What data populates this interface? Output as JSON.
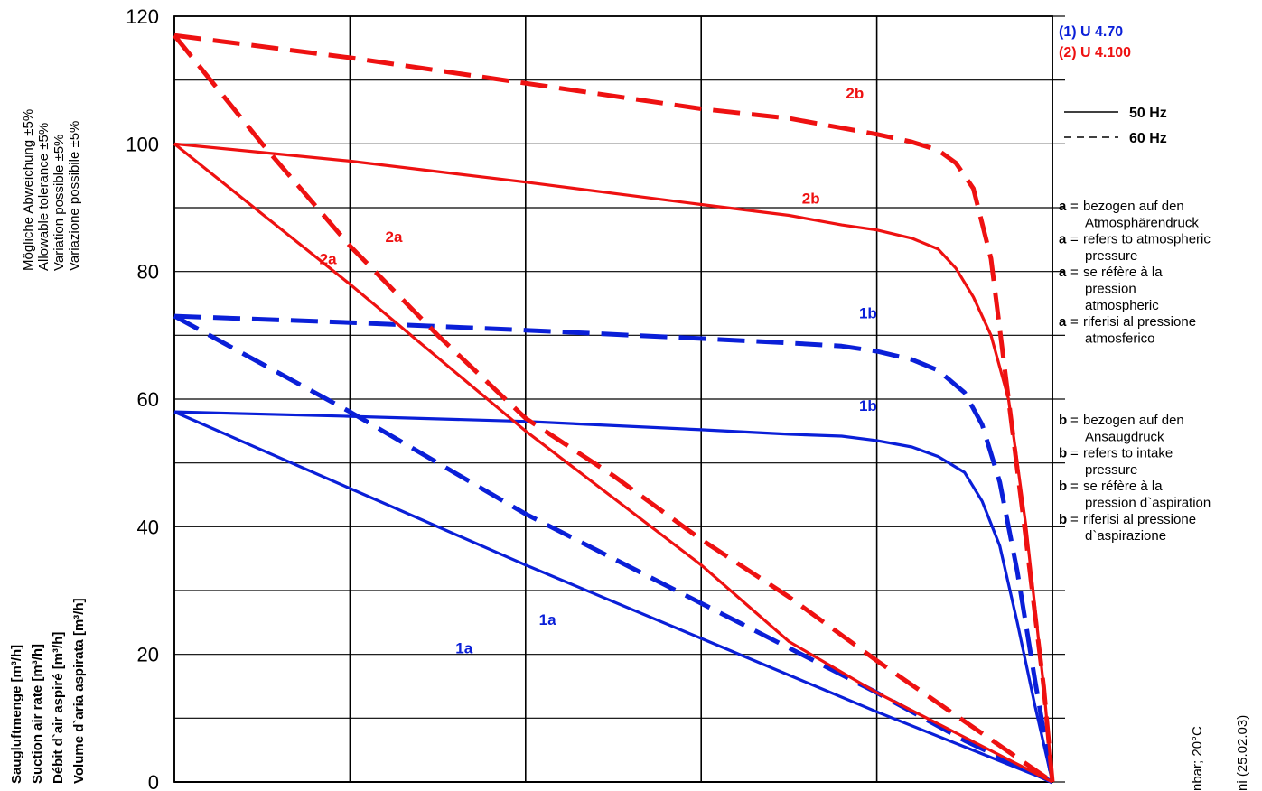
{
  "chart_data": {
    "type": "line",
    "ylim": [
      0,
      120
    ],
    "yticks": [
      "0",
      "20",
      "40",
      "60",
      "80",
      "100",
      "120"
    ],
    "grid": true,
    "tolerance_labels": [
      "Mögliche Abweichung ±5%",
      "Allowable tolerance ±5%",
      "Variation possible ±5%",
      "Variazione possibile ±5%"
    ],
    "ylabel_lines": [
      "Saugluftmenge [m³/h]",
      "Suction air rate [m³/h]",
      "Débit d`air aspiré [m³/h]",
      "Volume d`aria aspirata [m³/h]"
    ],
    "series": [
      {
        "name": "(1) U 4.70",
        "curve": "1a",
        "freq": "50 Hz",
        "color": "#0a1fd8",
        "x": [
          0,
          0.2,
          0.4,
          0.6,
          0.8,
          0.9,
          1.0
        ],
        "y": [
          58,
          46,
          34,
          22.5,
          11,
          5.5,
          0
        ]
      },
      {
        "name": "(1) U 4.70",
        "curve": "1a",
        "freq": "60 Hz",
        "color": "#0a1fd8",
        "x": [
          0,
          0.2,
          0.4,
          0.6,
          0.8,
          0.9,
          1.0
        ],
        "y": [
          73,
          58,
          42,
          28,
          14,
          6.5,
          0
        ]
      },
      {
        "name": "(1) U 4.70",
        "curve": "1b",
        "freq": "50 Hz",
        "color": "#0a1fd8",
        "x": [
          0,
          0.2,
          0.4,
          0.6,
          0.7,
          0.76,
          0.8,
          0.84,
          0.87,
          0.9,
          0.92,
          0.94,
          0.96,
          0.98,
          1.0
        ],
        "y": [
          58,
          57.3,
          56.5,
          55.2,
          54.5,
          54.2,
          53.5,
          52.5,
          51,
          48.5,
          44,
          37,
          25,
          12,
          0
        ]
      },
      {
        "name": "(1) U 4.70",
        "curve": "1b",
        "freq": "60 Hz",
        "color": "#0a1fd8",
        "x": [
          0,
          0.2,
          0.4,
          0.6,
          0.7,
          0.76,
          0.8,
          0.84,
          0.87,
          0.9,
          0.92,
          0.94,
          0.96,
          0.98,
          1.0
        ],
        "y": [
          73,
          72,
          70.8,
          69.5,
          68.8,
          68.3,
          67.5,
          66.2,
          64.5,
          61,
          56,
          47,
          33,
          16,
          0
        ]
      },
      {
        "name": "(2) U 4.100",
        "curve": "2a",
        "freq": "50 Hz",
        "color": "#ee1111",
        "x": [
          0,
          0.2,
          0.4,
          0.6,
          0.7,
          0.8,
          0.9,
          1.0
        ],
        "y": [
          100,
          78,
          55,
          34,
          22,
          14,
          7,
          0
        ]
      },
      {
        "name": "(2) U 4.100",
        "curve": "2a",
        "freq": "60 Hz",
        "color": "#ee1111",
        "x": [
          0,
          0.1,
          0.2,
          0.3,
          0.4,
          0.5,
          0.6,
          0.7,
          0.8,
          0.9,
          1.0
        ],
        "y": [
          117,
          100,
          84,
          70,
          57,
          48,
          38,
          29,
          19,
          9.5,
          0
        ]
      },
      {
        "name": "(2) U 4.100",
        "curve": "2b",
        "freq": "50 Hz",
        "color": "#ee1111",
        "x": [
          0,
          0.2,
          0.4,
          0.6,
          0.7,
          0.76,
          0.8,
          0.84,
          0.87,
          0.89,
          0.91,
          0.93,
          0.95,
          0.97,
          0.99,
          1.0
        ],
        "y": [
          100,
          97.3,
          94,
          90.5,
          88.8,
          87.3,
          86.5,
          85.2,
          83.5,
          80.5,
          76,
          70,
          60,
          40,
          15,
          0
        ]
      },
      {
        "name": "(2) U 4.100",
        "curve": "2b",
        "freq": "60 Hz",
        "color": "#ee1111",
        "x": [
          0,
          0.2,
          0.4,
          0.6,
          0.7,
          0.76,
          0.8,
          0.84,
          0.87,
          0.89,
          0.91,
          0.93,
          0.95,
          0.97,
          0.99,
          1.0
        ],
        "y": [
          117,
          113.5,
          109.5,
          105.5,
          104,
          102.5,
          101.5,
          100.3,
          99,
          97,
          93,
          82,
          60,
          38,
          15,
          0
        ]
      }
    ],
    "curve_labels": [
      {
        "text": "1a",
        "color": "#0a1fd8",
        "x": 0.33,
        "y": 21
      },
      {
        "text": "1a",
        "color": "#0a1fd8",
        "x": 0.425,
        "y": 25.5
      },
      {
        "text": "1b",
        "color": "#0a1fd8",
        "x": 0.79,
        "y": 59
      },
      {
        "text": "1b",
        "color": "#0a1fd8",
        "x": 0.79,
        "y": 73.5
      },
      {
        "text": "2a",
        "color": "#ee1111",
        "x": 0.175,
        "y": 82
      },
      {
        "text": "2a",
        "color": "#ee1111",
        "x": 0.25,
        "y": 85.5
      },
      {
        "text": "2b",
        "color": "#ee1111",
        "x": 0.725,
        "y": 91.5
      },
      {
        "text": "2b",
        "color": "#ee1111",
        "x": 0.775,
        "y": 108
      }
    ]
  },
  "legend": {
    "models": [
      {
        "text": "(1)  U 4.70",
        "color": "#0a1fd8"
      },
      {
        "text": "(2)  U 4.100",
        "color": "#ee1111"
      }
    ],
    "freqs": [
      {
        "text": "50 Hz",
        "style": "solid"
      },
      {
        "text": "60 Hz",
        "style": "dashed"
      }
    ]
  },
  "notes": {
    "a_key": "a",
    "b_key": "b",
    "a_items": [
      [
        "bezogen auf den",
        "Atmosphärendruck"
      ],
      [
        "refers to atmospheric",
        "pressure"
      ],
      [
        "se réfère à la",
        "pression",
        "atmospheric"
      ],
      [
        "riferisi al pressione",
        "atmosferico"
      ]
    ],
    "b_items": [
      [
        "bezogen auf den",
        "Ansaugdruck"
      ],
      [
        "refers to intake",
        "pressure"
      ],
      [
        "se réfère à la",
        "pression d`aspiration"
      ],
      [
        "riferisi al pressione",
        "d`aspirazione"
      ]
    ]
  },
  "footer": {
    "conditions": "nbar; 20°C",
    "date": "ni   (25.02.03)"
  }
}
